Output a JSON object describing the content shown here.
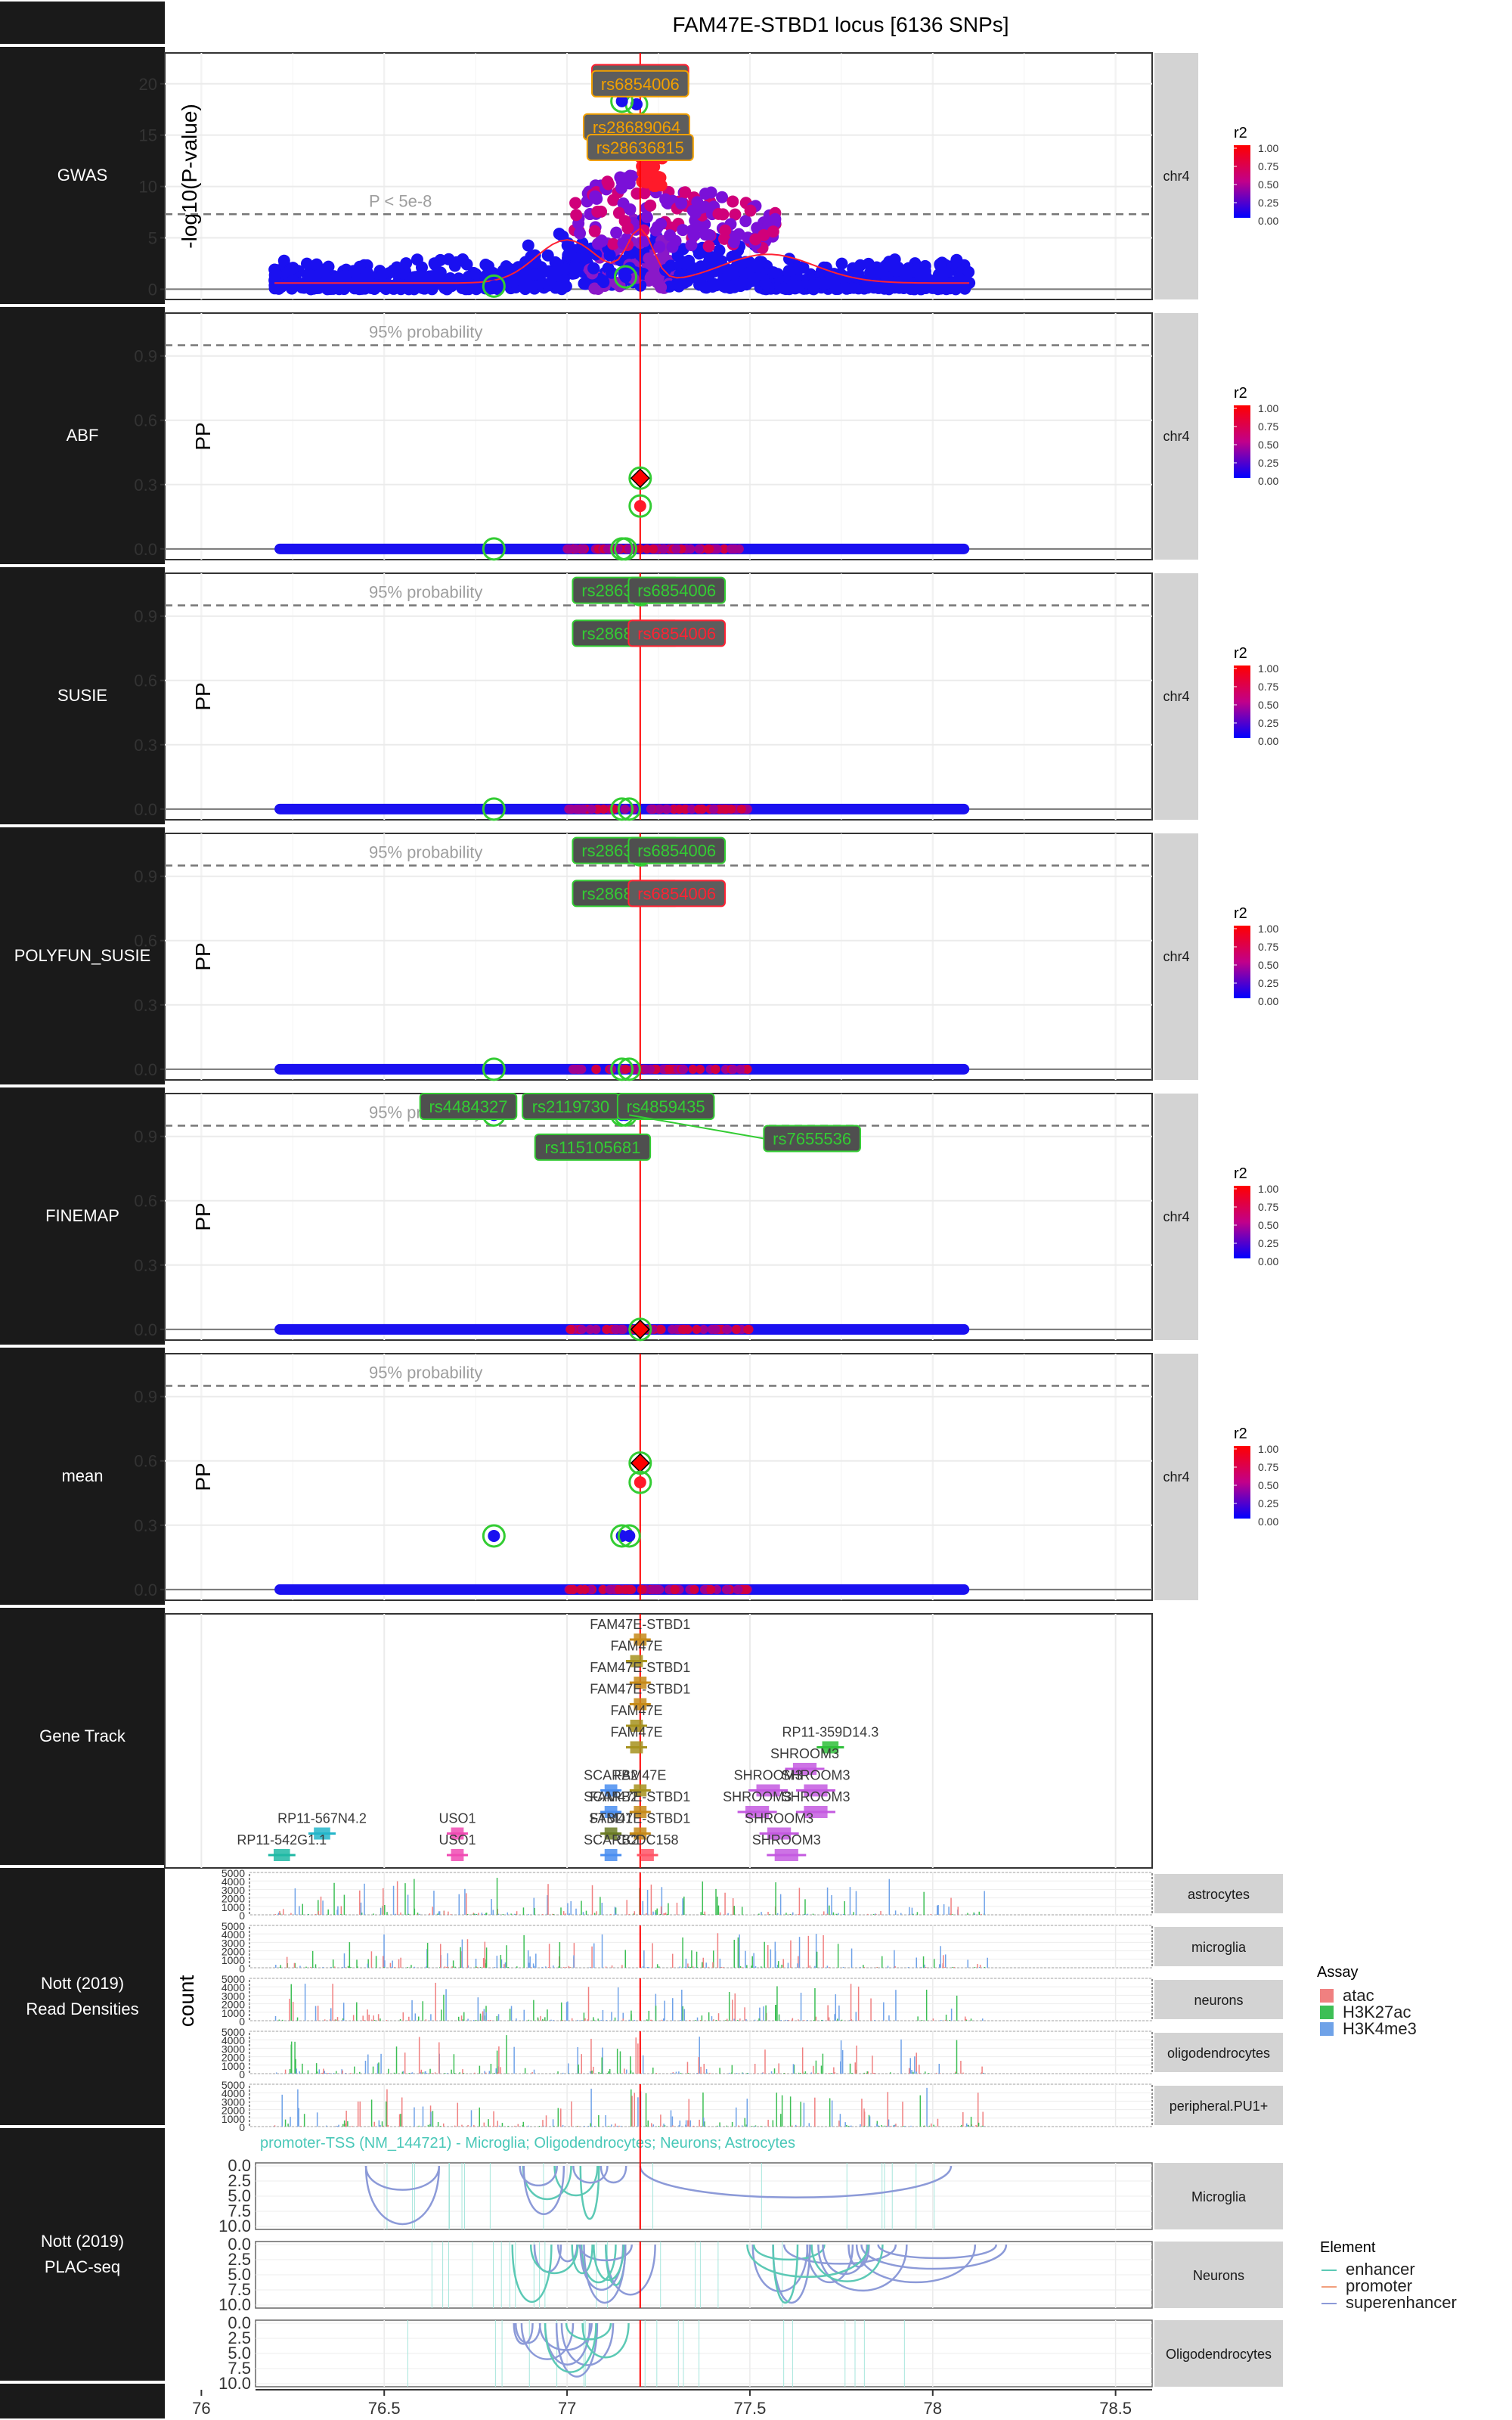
{
  "title": "FAM47E-STBD1 locus [6136 SNPs]",
  "x_ticks": [
    76,
    76.5,
    77,
    77.5,
    78,
    78.5
  ],
  "lead_x": 77.2,
  "r2_legend": {
    "title": "r2",
    "labels": [
      "1.00",
      "0.75",
      "0.50",
      "0.25",
      "0.00"
    ]
  },
  "colors": {
    "r2_low": "#0000ff",
    "r2_high": "#ff0000",
    "lead": "#ff0000",
    "credset": "#33cc33",
    "atac": "#f08080",
    "H3K27ac": "#3dbf55",
    "H3K4me3": "#6fa2e8",
    "enhancer": "#5cc9b5",
    "promoter": "#f2a07e",
    "superenhancer": "#8c9ad8"
  },
  "chart_data": [
    {
      "type": "scatter",
      "panel": "GWAS",
      "ylabel": "-log10(P-value)",
      "facet": "chr4",
      "yticks": [
        0,
        5,
        10,
        15,
        20
      ],
      "ylim": [
        -1,
        23
      ],
      "threshold": {
        "y": 7.3,
        "label": "P < 5e-8"
      },
      "points": [
        [
          77.2,
          20
        ],
        [
          77.19,
          18
        ],
        [
          77.18,
          15.5
        ],
        [
          77.15,
          18.3
        ],
        [
          77.16,
          1.2
        ],
        [
          76.8,
          0.3
        ]
      ],
      "labels": [
        {
          "text": "rs6854006",
          "x": 77.2,
          "y": 20.6,
          "style": "lead"
        },
        {
          "text": "rs6854006",
          "x": 77.2,
          "y": 20.0,
          "style": "ann"
        },
        {
          "text": "rs28689064",
          "x": 77.19,
          "y": 15.8,
          "style": "ann"
        },
        {
          "text": "rs28636815",
          "x": 77.2,
          "y": 13.8,
          "style": "ann"
        }
      ]
    },
    {
      "type": "scatter",
      "panel": "ABF",
      "ylabel": "PP",
      "facet": "chr4",
      "yticks": [
        0,
        0.3,
        0.6,
        0.9
      ],
      "ytick_labels": [
        "0.0",
        "0.3",
        "0.6",
        "0.9"
      ],
      "ylim": [
        -0.05,
        1.1
      ],
      "threshold": {
        "y": 0.95,
        "label": "95% probability"
      },
      "points": [
        [
          77.2,
          0.33
        ],
        [
          77.2,
          0.2
        ],
        [
          77.15,
          0.0
        ],
        [
          77.16,
          0.0
        ],
        [
          76.8,
          0.0
        ]
      ],
      "labels": []
    },
    {
      "type": "scatter",
      "panel": "SUSIE",
      "ylabel": "PP",
      "facet": "chr4",
      "yticks": [
        0,
        0.3,
        0.6,
        0.9
      ],
      "ytick_labels": [
        "0.0",
        "0.3",
        "0.6",
        "0.9"
      ],
      "ylim": [
        -0.05,
        1.1
      ],
      "threshold": {
        "y": 0.95,
        "label": "95% probability"
      },
      "points": [
        [
          77.2,
          1.0
        ],
        [
          77.15,
          0.0
        ],
        [
          77.17,
          0.0
        ],
        [
          76.8,
          0.0
        ]
      ],
      "labels": [
        {
          "text": "rs28636815",
          "x": 77.16,
          "y": 1.02,
          "style": "cs"
        },
        {
          "text": "rs6854006",
          "x": 77.3,
          "y": 1.02,
          "style": "cs"
        },
        {
          "text": "rs28689064",
          "x": 77.16,
          "y": 0.82,
          "style": "cs"
        },
        {
          "text": "rs6854006",
          "x": 77.3,
          "y": 0.82,
          "style": "leadbox"
        }
      ]
    },
    {
      "type": "scatter",
      "panel": "POLYFUN_SUSIE",
      "ylabel": "PP",
      "facet": "chr4",
      "yticks": [
        0,
        0.3,
        0.6,
        0.9
      ],
      "ytick_labels": [
        "0.0",
        "0.3",
        "0.6",
        "0.9"
      ],
      "ylim": [
        -0.05,
        1.1
      ],
      "threshold": {
        "y": 0.95,
        "label": "95% probability"
      },
      "points": [
        [
          77.2,
          1.0
        ],
        [
          77.15,
          0.0
        ],
        [
          77.17,
          0.0
        ],
        [
          76.8,
          0.0
        ]
      ],
      "labels": [
        {
          "text": "rs28636815",
          "x": 77.16,
          "y": 1.02,
          "style": "cs"
        },
        {
          "text": "rs6854006",
          "x": 77.3,
          "y": 1.02,
          "style": "cs"
        },
        {
          "text": "rs28689064",
          "x": 77.16,
          "y": 0.82,
          "style": "cs"
        },
        {
          "text": "rs6854006",
          "x": 77.3,
          "y": 0.82,
          "style": "leadbox"
        }
      ]
    },
    {
      "type": "scatter",
      "panel": "FINEMAP",
      "ylabel": "PP",
      "facet": "chr4",
      "yticks": [
        0,
        0.3,
        0.6,
        0.9
      ],
      "ytick_labels": [
        "0.0",
        "0.3",
        "0.6",
        "0.9"
      ],
      "ylim": [
        -0.05,
        1.1
      ],
      "threshold": {
        "y": 0.95,
        "label": "95% probability"
      },
      "points": [
        [
          76.8,
          1.0
        ],
        [
          77.15,
          1.0
        ],
        [
          77.16,
          1.0
        ],
        [
          77.2,
          0.0
        ]
      ],
      "labels": [
        {
          "text": "rs4484327",
          "x": 76.73,
          "y": 1.04,
          "style": "cs"
        },
        {
          "text": "rs2119730",
          "x": 77.01,
          "y": 1.04,
          "style": "cs"
        },
        {
          "text": "rs4859435",
          "x": 77.27,
          "y": 1.04,
          "style": "cs"
        },
        {
          "text": "rs115105681",
          "x": 77.07,
          "y": 0.85,
          "style": "cs"
        },
        {
          "text": "rs7655536",
          "x": 77.67,
          "y": 0.89,
          "style": "cs"
        }
      ]
    },
    {
      "type": "scatter",
      "panel": "mean",
      "ylabel": "PP",
      "facet": "chr4",
      "yticks": [
        0,
        0.3,
        0.6,
        0.9
      ],
      "ytick_labels": [
        "0.0",
        "0.3",
        "0.6",
        "0.9"
      ],
      "ylim": [
        -0.05,
        1.1
      ],
      "threshold": {
        "y": 0.95,
        "label": "95% probability"
      },
      "points": [
        [
          77.2,
          0.59
        ],
        [
          77.2,
          0.5
        ],
        [
          76.8,
          0.25
        ],
        [
          77.15,
          0.25
        ],
        [
          77.17,
          0.25
        ]
      ],
      "labels": []
    },
    {
      "type": "table",
      "panel": "Gene Track",
      "genes": [
        {
          "name": "FAM47E-STBD1",
          "x": 77.2,
          "row": 0
        },
        {
          "name": "FAM47E",
          "x": 77.19,
          "row": 1
        },
        {
          "name": "FAM47E-STBD1",
          "x": 77.2,
          "row": 2
        },
        {
          "name": "FAM47E-STBD1",
          "x": 77.2,
          "row": 3
        },
        {
          "name": "FAM47E",
          "x": 77.19,
          "row": 4
        },
        {
          "name": "FAM47E",
          "x": 77.19,
          "row": 5
        },
        {
          "name": "RP11-359D14.3",
          "x": 77.72,
          "row": 5
        },
        {
          "name": "SHROOM3",
          "x": 77.65,
          "row": 6
        },
        {
          "name": "SCARB2",
          "x": 77.12,
          "row": 7
        },
        {
          "name": "FAM47E",
          "x": 77.2,
          "row": 7
        },
        {
          "name": "SHROOM3",
          "x": 77.55,
          "row": 7
        },
        {
          "name": "SHROOM3",
          "x": 77.68,
          "row": 7
        },
        {
          "name": "SCARB2",
          "x": 77.12,
          "row": 8
        },
        {
          "name": "FAM47E-STBD1",
          "x": 77.2,
          "row": 8
        },
        {
          "name": "SHROOM3",
          "x": 77.52,
          "row": 8
        },
        {
          "name": "SHROOM3",
          "x": 77.68,
          "row": 8
        },
        {
          "name": "RP11-567N4.2",
          "x": 76.33,
          "row": 9
        },
        {
          "name": "USO1",
          "x": 76.7,
          "row": 9
        },
        {
          "name": "STBD1",
          "x": 77.12,
          "row": 9
        },
        {
          "name": "FAM47E-STBD1",
          "x": 77.2,
          "row": 9
        },
        {
          "name": "SHROOM3",
          "x": 77.58,
          "row": 9
        },
        {
          "name": "RP11-542G1.1",
          "x": 76.22,
          "row": 10
        },
        {
          "name": "USO1",
          "x": 76.7,
          "row": 10
        },
        {
          "name": "SCARB2",
          "x": 77.12,
          "row": 10
        },
        {
          "name": "CCDC158",
          "x": 77.22,
          "row": 10
        },
        {
          "name": "SHROOM3",
          "x": 77.6,
          "row": 10
        }
      ]
    },
    {
      "type": "bar",
      "panel": "Nott (2019) Read Densities",
      "ylabel": "count",
      "yticks": [
        0,
        1000,
        2000,
        3000,
        4000,
        5000
      ],
      "ylim": [
        0,
        5000
      ],
      "facets": [
        "astrocytes",
        "microglia",
        "neurons",
        "oligodendrocytes",
        "peripheral.PU1+"
      ],
      "legend": {
        "title": "Assay",
        "entries": [
          "atac",
          "H3K27ac",
          "H3K4me3"
        ]
      }
    },
    {
      "type": "line",
      "panel": "Nott (2019) PLAC-seq",
      "header": "promoter-TSS (NM_144721) - Microglia; Oligodendrocytes; Neurons; Astrocytes",
      "yticks": [
        0,
        2.5,
        5,
        7.5,
        10
      ],
      "ytick_labels": [
        "0.0",
        "2.5",
        "5.0",
        "7.5",
        "10.0"
      ],
      "facets": [
        "Microglia",
        "Neurons",
        "Oligodendrocytes"
      ],
      "legend": {
        "title": "Element",
        "entries": [
          "enhancer",
          "promoter",
          "superenhancer"
        ]
      }
    }
  ],
  "row_labels": [
    "GWAS",
    "ABF",
    "SUSIE",
    "POLYFUN_SUSIE",
    "FINEMAP",
    "mean",
    "Gene Track",
    "Nott (2019)\nRead Densities",
    "Nott (2019)\nPLAC-seq"
  ]
}
